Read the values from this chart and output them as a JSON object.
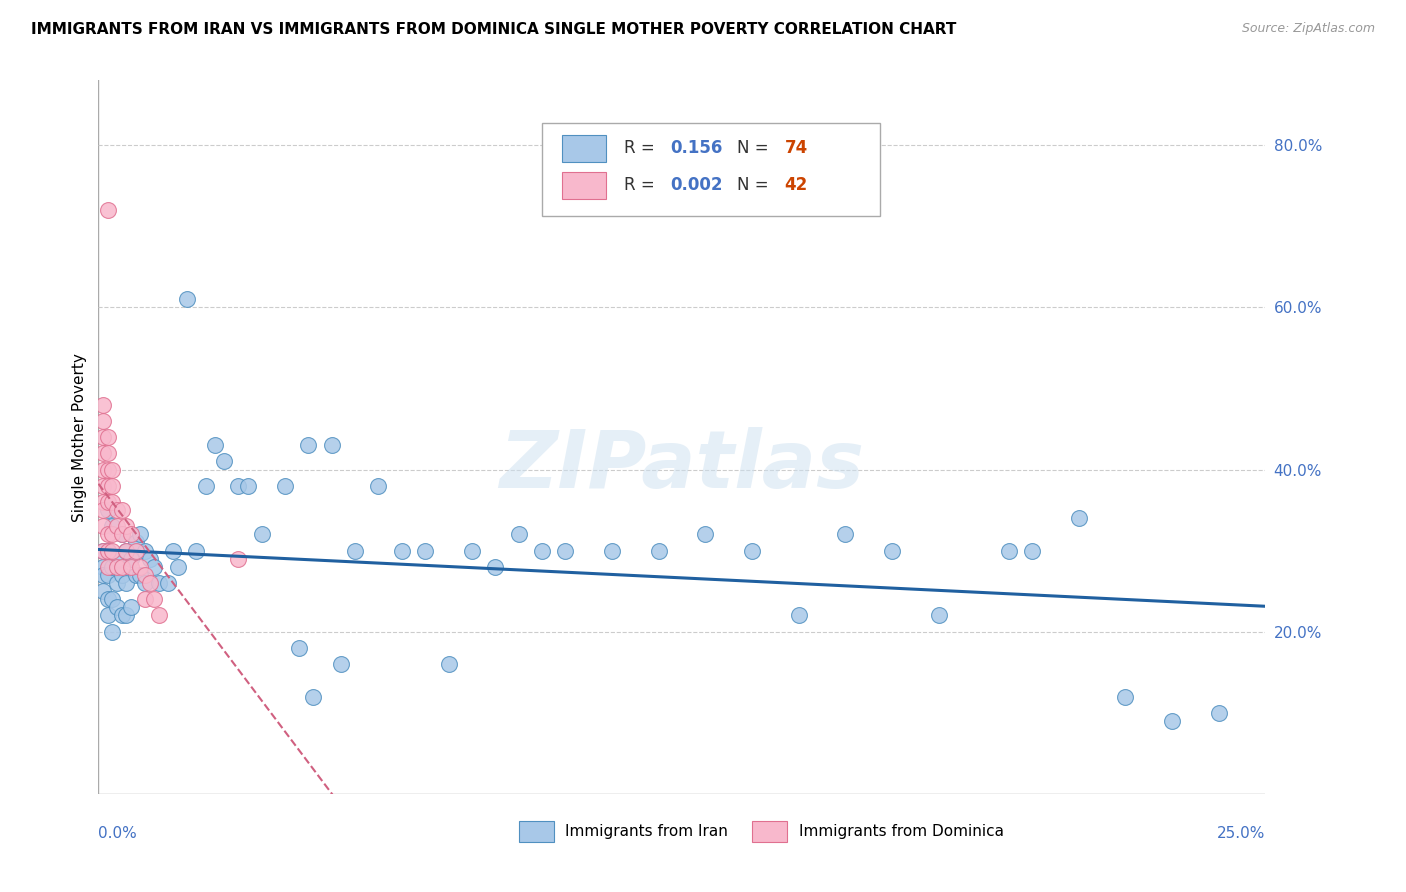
{
  "title": "IMMIGRANTS FROM IRAN VS IMMIGRANTS FROM DOMINICA SINGLE MOTHER POVERTY CORRELATION CHART",
  "source": "Source: ZipAtlas.com",
  "ylabel": "Single Mother Poverty",
  "y_ticks": [
    0.0,
    0.2,
    0.4,
    0.6,
    0.8
  ],
  "y_tick_labels": [
    "",
    "20.0%",
    "40.0%",
    "60.0%",
    "80.0%"
  ],
  "x_range": [
    0.0,
    0.25
  ],
  "y_range": [
    0.0,
    0.88
  ],
  "legend_iran_R": "0.156",
  "legend_iran_N": "74",
  "legend_dominica_R": "0.002",
  "legend_dominica_N": "42",
  "color_iran_fill": "#a8c8e8",
  "color_iran_edge": "#5090c0",
  "color_dominica_fill": "#f8b8cc",
  "color_dominica_edge": "#e07090",
  "line_iran_color": "#2060a0",
  "line_dominica_color": "#d06080",
  "watermark": "ZIPatlas",
  "iran_x": [
    0.001,
    0.001,
    0.001,
    0.001,
    0.002,
    0.002,
    0.002,
    0.002,
    0.002,
    0.003,
    0.003,
    0.003,
    0.003,
    0.004,
    0.004,
    0.004,
    0.005,
    0.005,
    0.005,
    0.006,
    0.006,
    0.006,
    0.007,
    0.007,
    0.008,
    0.008,
    0.009,
    0.009,
    0.01,
    0.01,
    0.011,
    0.012,
    0.013,
    0.015,
    0.016,
    0.017,
    0.019,
    0.021,
    0.023,
    0.025,
    0.027,
    0.03,
    0.032,
    0.035,
    0.04,
    0.045,
    0.05,
    0.055,
    0.06,
    0.065,
    0.07,
    0.08,
    0.085,
    0.09,
    0.095,
    0.1,
    0.11,
    0.12,
    0.13,
    0.14,
    0.15,
    0.16,
    0.17,
    0.18,
    0.195,
    0.2,
    0.21,
    0.22,
    0.23,
    0.24,
    0.046,
    0.052,
    0.043,
    0.075
  ],
  "iran_y": [
    0.28,
    0.3,
    0.25,
    0.27,
    0.35,
    0.3,
    0.27,
    0.24,
    0.22,
    0.33,
    0.28,
    0.24,
    0.2,
    0.29,
    0.26,
    0.23,
    0.32,
    0.27,
    0.22,
    0.3,
    0.26,
    0.22,
    0.29,
    0.23,
    0.31,
    0.27,
    0.32,
    0.27,
    0.3,
    0.26,
    0.29,
    0.28,
    0.26,
    0.26,
    0.3,
    0.28,
    0.61,
    0.3,
    0.38,
    0.43,
    0.41,
    0.38,
    0.38,
    0.32,
    0.38,
    0.43,
    0.43,
    0.3,
    0.38,
    0.3,
    0.3,
    0.3,
    0.28,
    0.32,
    0.3,
    0.3,
    0.3,
    0.3,
    0.32,
    0.3,
    0.22,
    0.32,
    0.3,
    0.22,
    0.3,
    0.3,
    0.34,
    0.12,
    0.09,
    0.1,
    0.12,
    0.16,
    0.18,
    0.16
  ],
  "dominica_x": [
    0.001,
    0.001,
    0.001,
    0.001,
    0.001,
    0.001,
    0.001,
    0.001,
    0.001,
    0.001,
    0.002,
    0.002,
    0.002,
    0.002,
    0.002,
    0.002,
    0.002,
    0.002,
    0.003,
    0.003,
    0.003,
    0.003,
    0.003,
    0.004,
    0.004,
    0.004,
    0.005,
    0.005,
    0.005,
    0.006,
    0.006,
    0.007,
    0.007,
    0.008,
    0.009,
    0.01,
    0.01,
    0.011,
    0.012,
    0.013,
    0.03,
    0.002
  ],
  "dominica_y": [
    0.36,
    0.38,
    0.4,
    0.42,
    0.44,
    0.46,
    0.48,
    0.35,
    0.33,
    0.3,
    0.36,
    0.38,
    0.4,
    0.42,
    0.44,
    0.32,
    0.3,
    0.28,
    0.36,
    0.38,
    0.4,
    0.32,
    0.3,
    0.35,
    0.33,
    0.28,
    0.35,
    0.32,
    0.28,
    0.33,
    0.3,
    0.32,
    0.28,
    0.3,
    0.28,
    0.27,
    0.24,
    0.26,
    0.24,
    0.22,
    0.29,
    0.72
  ]
}
